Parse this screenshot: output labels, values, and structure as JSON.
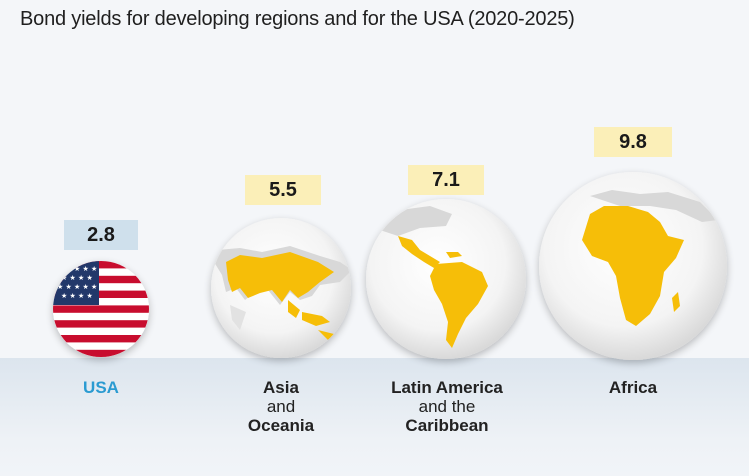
{
  "title": "Bond yields for developing regions and for the USA (2020-2025)",
  "colors": {
    "usa_label": "#2b9bd1",
    "value_box_usa": "#cfe0ec",
    "value_box_regions": "#fbefb8",
    "land": "#f6be08",
    "globe": "#ffffff",
    "floor": "#dce5ee"
  },
  "chart_data": {
    "type": "bar",
    "title": "Bond yields for developing regions and for the USA (2020-2025)",
    "categories": [
      "USA",
      "Asia and Oceania",
      "Latin America and the Caribbean",
      "Africa"
    ],
    "values": [
      2.8,
      5.5,
      7.1,
      9.8
    ],
    "value_labels": [
      "2.8",
      "5.5",
      "7.1",
      "9.8"
    ],
    "category_labels": [
      {
        "lines": [
          "USA"
        ],
        "weights": [
          "bold"
        ]
      },
      {
        "lines": [
          "Asia",
          "and",
          "Oceania"
        ],
        "weights": [
          "bold",
          "normal",
          "bold"
        ]
      },
      {
        "lines": [
          "Latin America",
          "and the",
          "Caribbean"
        ],
        "weights": [
          "bold",
          "normal",
          "bold"
        ]
      },
      {
        "lines": [
          "Africa"
        ],
        "weights": [
          "bold"
        ]
      }
    ],
    "icons": [
      "us-flag-icon",
      "asia-oceania-globe-icon",
      "latin-america-globe-icon",
      "africa-globe-icon"
    ],
    "encoding": "circle size proportional to value",
    "xlabel": "",
    "ylabel": ""
  }
}
